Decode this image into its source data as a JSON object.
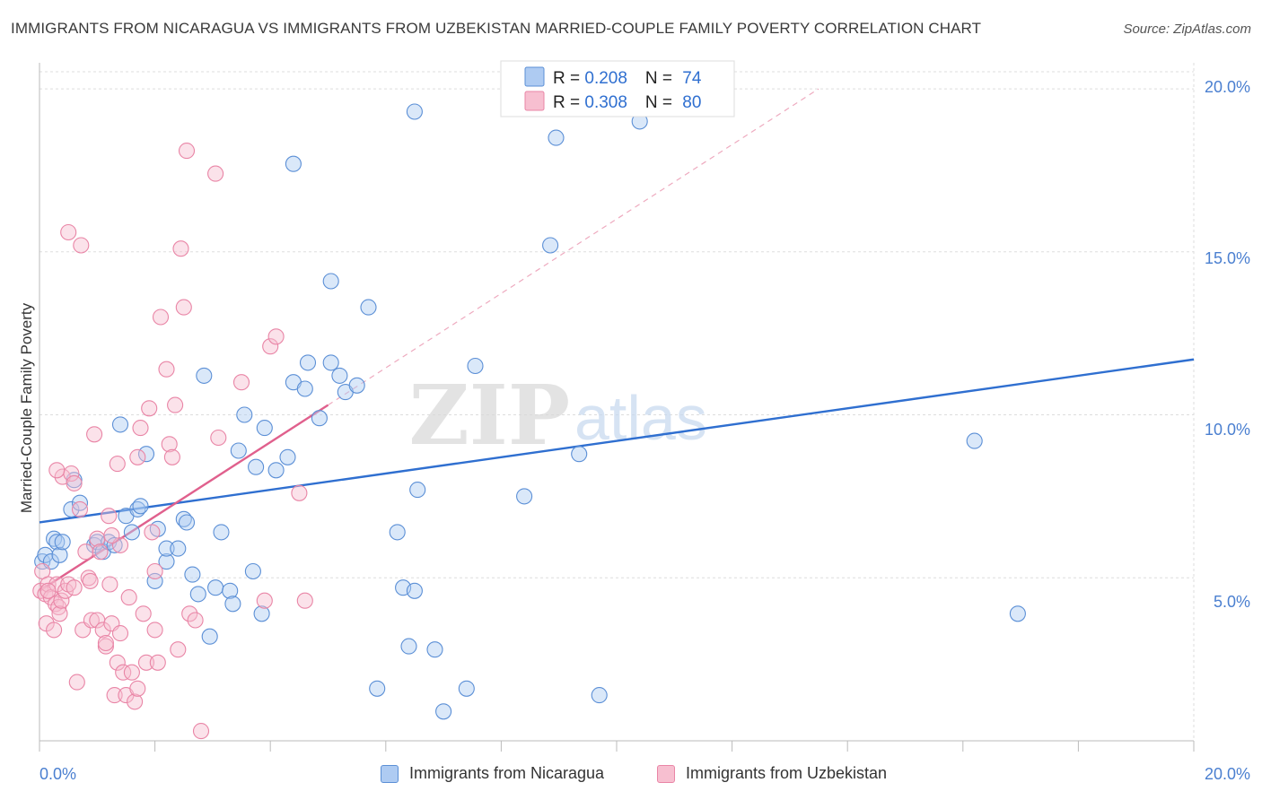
{
  "title": "IMMIGRANTS FROM NICARAGUA VS IMMIGRANTS FROM UZBEKISTAN MARRIED-COUPLE FAMILY POVERTY CORRELATION CHART",
  "source": "Source: ZipAtlas.com",
  "watermark": {
    "zip": "ZIP",
    "atlas": "atlas"
  },
  "colors": {
    "blue_fill": "#aecbf2",
    "blue_stroke": "#5b8fd6",
    "blue_line": "#2f6fd0",
    "pink_fill": "#f7bfd0",
    "pink_stroke": "#e985a6",
    "pink_line": "#e0608d",
    "axis_text": "#4a7fd0",
    "grid": "#dddddd"
  },
  "legend_box": {
    "rows": [
      {
        "r_label": "R = ",
        "r_value": "0.208",
        "n_label": "N = ",
        "n_value": "74",
        "series": "blue"
      },
      {
        "r_label": "R = ",
        "r_value": "0.308",
        "n_label": "N = ",
        "n_value": "80",
        "series": "pink"
      }
    ]
  },
  "chart_data": {
    "type": "scatter",
    "title": "IMMIGRANTS FROM NICARAGUA VS IMMIGRANTS FROM UZBEKISTAN MARRIED-COUPLE FAMILY POVERTY CORRELATION CHART",
    "xlabel": "",
    "ylabel": "Married-Couple Family Poverty",
    "xlim": [
      0,
      20
    ],
    "ylim": [
      0,
      20.8
    ],
    "x_tick_labels": [
      "0.0%",
      "20.0%"
    ],
    "y_tick_labels": [
      "5.0%",
      "10.0%",
      "15.0%",
      "20.0%"
    ],
    "y_ticks": [
      5,
      10,
      15,
      20
    ],
    "series": [
      {
        "name": "Immigrants from Nicaragua",
        "color": "blue",
        "r": 0.208,
        "n": 74,
        "trend": {
          "x": [
            0,
            20
          ],
          "y": [
            6.7,
            11.7
          ]
        },
        "points": [
          [
            0.05,
            5.5
          ],
          [
            0.1,
            5.7
          ],
          [
            0.2,
            5.5
          ],
          [
            0.25,
            6.2
          ],
          [
            0.3,
            6.1
          ],
          [
            0.35,
            5.7
          ],
          [
            0.4,
            6.1
          ],
          [
            0.55,
            7.1
          ],
          [
            0.6,
            8.0
          ],
          [
            0.7,
            7.3
          ],
          [
            0.95,
            6.0
          ],
          [
            1.0,
            6.1
          ],
          [
            1.1,
            5.8
          ],
          [
            1.2,
            6.1
          ],
          [
            1.3,
            6.0
          ],
          [
            1.4,
            9.7
          ],
          [
            1.5,
            6.9
          ],
          [
            1.6,
            6.4
          ],
          [
            1.7,
            7.1
          ],
          [
            1.75,
            7.2
          ],
          [
            1.85,
            8.8
          ],
          [
            2.0,
            4.9
          ],
          [
            2.05,
            6.5
          ],
          [
            2.2,
            5.5
          ],
          [
            2.2,
            5.9
          ],
          [
            2.4,
            5.9
          ],
          [
            2.5,
            6.8
          ],
          [
            2.55,
            6.7
          ],
          [
            2.65,
            5.1
          ],
          [
            2.75,
            4.5
          ],
          [
            2.85,
            11.2
          ],
          [
            2.95,
            3.2
          ],
          [
            3.05,
            4.7
          ],
          [
            3.15,
            6.4
          ],
          [
            3.3,
            4.6
          ],
          [
            3.35,
            4.2
          ],
          [
            3.45,
            8.9
          ],
          [
            3.55,
            10.0
          ],
          [
            3.7,
            5.2
          ],
          [
            3.75,
            8.4
          ],
          [
            3.85,
            3.9
          ],
          [
            3.9,
            9.6
          ],
          [
            4.1,
            8.3
          ],
          [
            4.3,
            8.7
          ],
          [
            4.4,
            17.7
          ],
          [
            4.4,
            11.0
          ],
          [
            4.6,
            10.8
          ],
          [
            4.65,
            11.6
          ],
          [
            4.85,
            9.9
          ],
          [
            5.05,
            14.1
          ],
          [
            5.05,
            11.6
          ],
          [
            5.2,
            11.2
          ],
          [
            5.3,
            10.7
          ],
          [
            5.5,
            10.9
          ],
          [
            5.7,
            13.3
          ],
          [
            5.85,
            1.6
          ],
          [
            6.2,
            6.4
          ],
          [
            6.3,
            4.7
          ],
          [
            6.4,
            2.9
          ],
          [
            6.5,
            4.6
          ],
          [
            6.5,
            19.3
          ],
          [
            6.55,
            7.7
          ],
          [
            6.85,
            2.8
          ],
          [
            7.0,
            0.9
          ],
          [
            7.4,
            1.6
          ],
          [
            7.55,
            11.5
          ],
          [
            8.4,
            7.5
          ],
          [
            8.85,
            15.2
          ],
          [
            8.95,
            18.5
          ],
          [
            9.35,
            8.8
          ],
          [
            9.7,
            1.4
          ],
          [
            10.4,
            19.0
          ],
          [
            16.2,
            9.2
          ],
          [
            16.95,
            3.9
          ]
        ]
      },
      {
        "name": "Immigrants from Uzbekistan",
        "color": "pink",
        "r": 0.308,
        "n": 80,
        "trend": {
          "x": [
            0,
            5.0
          ],
          "y": [
            4.6,
            10.3
          ]
        },
        "trend_extension": {
          "x": [
            5.0,
            13.5
          ],
          "y": [
            10.3,
            20.0
          ]
        },
        "points": [
          [
            0.02,
            4.6
          ],
          [
            0.05,
            5.2
          ],
          [
            0.1,
            4.5
          ],
          [
            0.12,
            3.6
          ],
          [
            0.15,
            4.8
          ],
          [
            0.2,
            4.4
          ],
          [
            0.25,
            3.4
          ],
          [
            0.28,
            4.2
          ],
          [
            0.3,
            4.8
          ],
          [
            0.33,
            4.1
          ],
          [
            0.35,
            3.9
          ],
          [
            0.38,
            4.3
          ],
          [
            0.4,
            8.1
          ],
          [
            0.45,
            4.6
          ],
          [
            0.5,
            4.8
          ],
          [
            0.55,
            8.2
          ],
          [
            0.6,
            7.9
          ],
          [
            0.65,
            1.8
          ],
          [
            0.7,
            7.1
          ],
          [
            0.72,
            15.2
          ],
          [
            0.5,
            15.6
          ],
          [
            0.75,
            3.4
          ],
          [
            0.8,
            5.8
          ],
          [
            0.85,
            5.0
          ],
          [
            0.88,
            4.9
          ],
          [
            0.9,
            3.7
          ],
          [
            0.95,
            9.4
          ],
          [
            1.0,
            3.7
          ],
          [
            1.0,
            6.2
          ],
          [
            1.05,
            5.8
          ],
          [
            1.1,
            3.4
          ],
          [
            1.15,
            2.9
          ],
          [
            1.2,
            6.9
          ],
          [
            1.22,
            4.8
          ],
          [
            1.25,
            3.6
          ],
          [
            1.3,
            1.4
          ],
          [
            1.35,
            2.4
          ],
          [
            1.4,
            3.3
          ],
          [
            1.4,
            6.0
          ],
          [
            1.45,
            2.1
          ],
          [
            1.5,
            1.4
          ],
          [
            1.55,
            4.4
          ],
          [
            1.6,
            2.1
          ],
          [
            1.65,
            1.2
          ],
          [
            1.7,
            1.6
          ],
          [
            1.75,
            9.6
          ],
          [
            1.8,
            3.9
          ],
          [
            1.85,
            2.4
          ],
          [
            1.9,
            10.2
          ],
          [
            1.95,
            6.4
          ],
          [
            2.0,
            3.4
          ],
          [
            2.05,
            2.4
          ],
          [
            2.1,
            13.0
          ],
          [
            2.2,
            11.4
          ],
          [
            2.25,
            9.1
          ],
          [
            2.3,
            8.7
          ],
          [
            2.35,
            10.3
          ],
          [
            2.4,
            2.8
          ],
          [
            2.45,
            15.1
          ],
          [
            2.5,
            13.3
          ],
          [
            2.55,
            18.1
          ],
          [
            2.6,
            3.9
          ],
          [
            2.7,
            3.7
          ],
          [
            2.8,
            0.3
          ],
          [
            3.05,
            17.4
          ],
          [
            3.1,
            9.3
          ],
          [
            3.5,
            11.0
          ],
          [
            3.9,
            4.3
          ],
          [
            4.0,
            12.1
          ],
          [
            4.1,
            12.4
          ],
          [
            4.5,
            7.6
          ],
          [
            4.6,
            4.3
          ],
          [
            0.3,
            8.3
          ],
          [
            1.15,
            3.0
          ],
          [
            1.7,
            8.7
          ],
          [
            0.15,
            4.6
          ],
          [
            0.6,
            4.7
          ],
          [
            1.35,
            8.5
          ],
          [
            2.0,
            5.2
          ],
          [
            1.25,
            6.3
          ]
        ]
      }
    ]
  },
  "axis_labels": {
    "y": "Married-Couple Family Poverty"
  },
  "bottom_legend": [
    {
      "label": "Immigrants from Nicaragua",
      "series": "blue"
    },
    {
      "label": "Immigrants from Uzbekistan",
      "series": "pink"
    }
  ]
}
